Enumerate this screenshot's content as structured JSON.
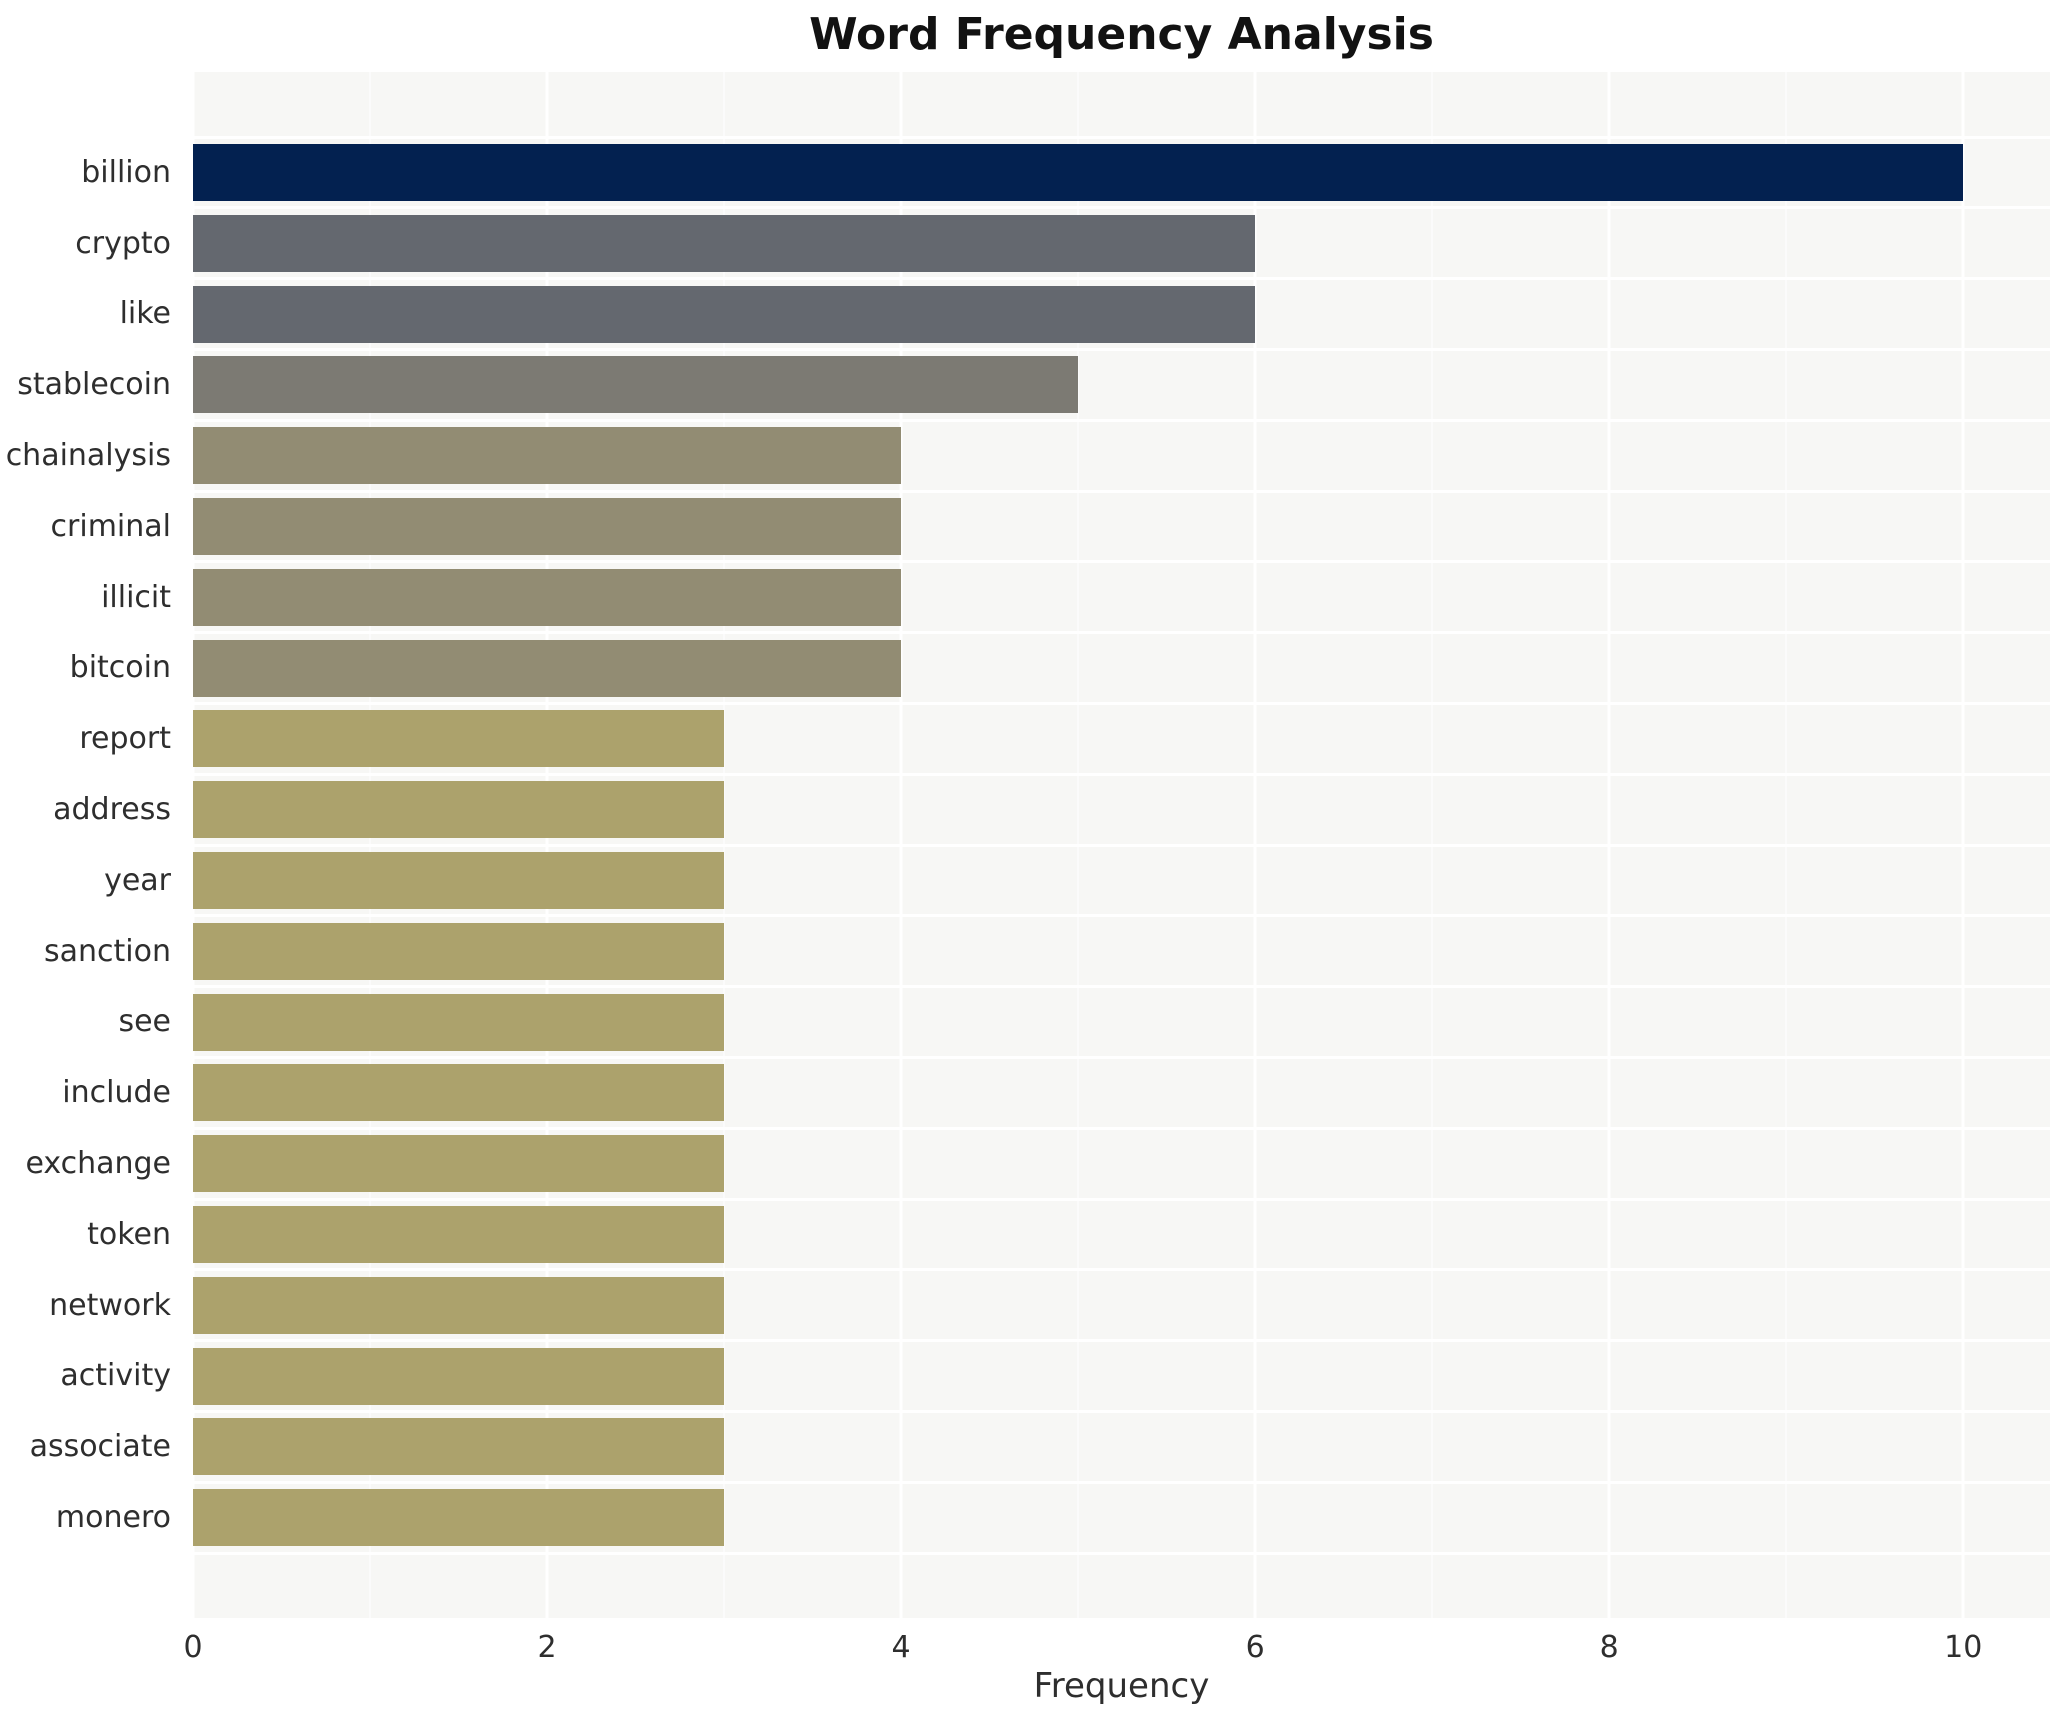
{
  "chart_data": {
    "type": "bar",
    "orientation": "horizontal",
    "title": "Word Frequency Analysis",
    "xlabel": "Frequency",
    "ylabel": "",
    "categories": [
      "billion",
      "crypto",
      "like",
      "stablecoin",
      "chainalysis",
      "criminal",
      "illicit",
      "bitcoin",
      "report",
      "address",
      "year",
      "sanction",
      "see",
      "include",
      "exchange",
      "token",
      "network",
      "activity",
      "associate",
      "monero"
    ],
    "values": [
      10,
      6,
      6,
      5,
      4,
      4,
      4,
      4,
      3,
      3,
      3,
      3,
      3,
      3,
      3,
      3,
      3,
      3,
      3,
      3
    ],
    "bar_colors": [
      "#032150",
      "#64686f",
      "#64686f",
      "#7c7a73",
      "#928c73",
      "#928c73",
      "#928c73",
      "#928c73",
      "#aca26c",
      "#aca26c",
      "#aca26c",
      "#aca26c",
      "#aca26c",
      "#aca26c",
      "#aca26c",
      "#aca26c",
      "#aca26c",
      "#aca26c",
      "#aca26c",
      "#aca26c"
    ],
    "xticks": [
      0,
      2,
      4,
      6,
      8,
      10
    ],
    "xtick_labels": [
      "0",
      "2",
      "4",
      "6",
      "8",
      "10"
    ],
    "xlim": [
      0,
      10.49
    ],
    "legend": "none",
    "grid": "vertical white major and minor lines, white row separators",
    "panel_bg": "#f7f7f5",
    "grid_color": "#ffffff",
    "text_color": "#2e2e2e",
    "title_color": "#121212"
  }
}
